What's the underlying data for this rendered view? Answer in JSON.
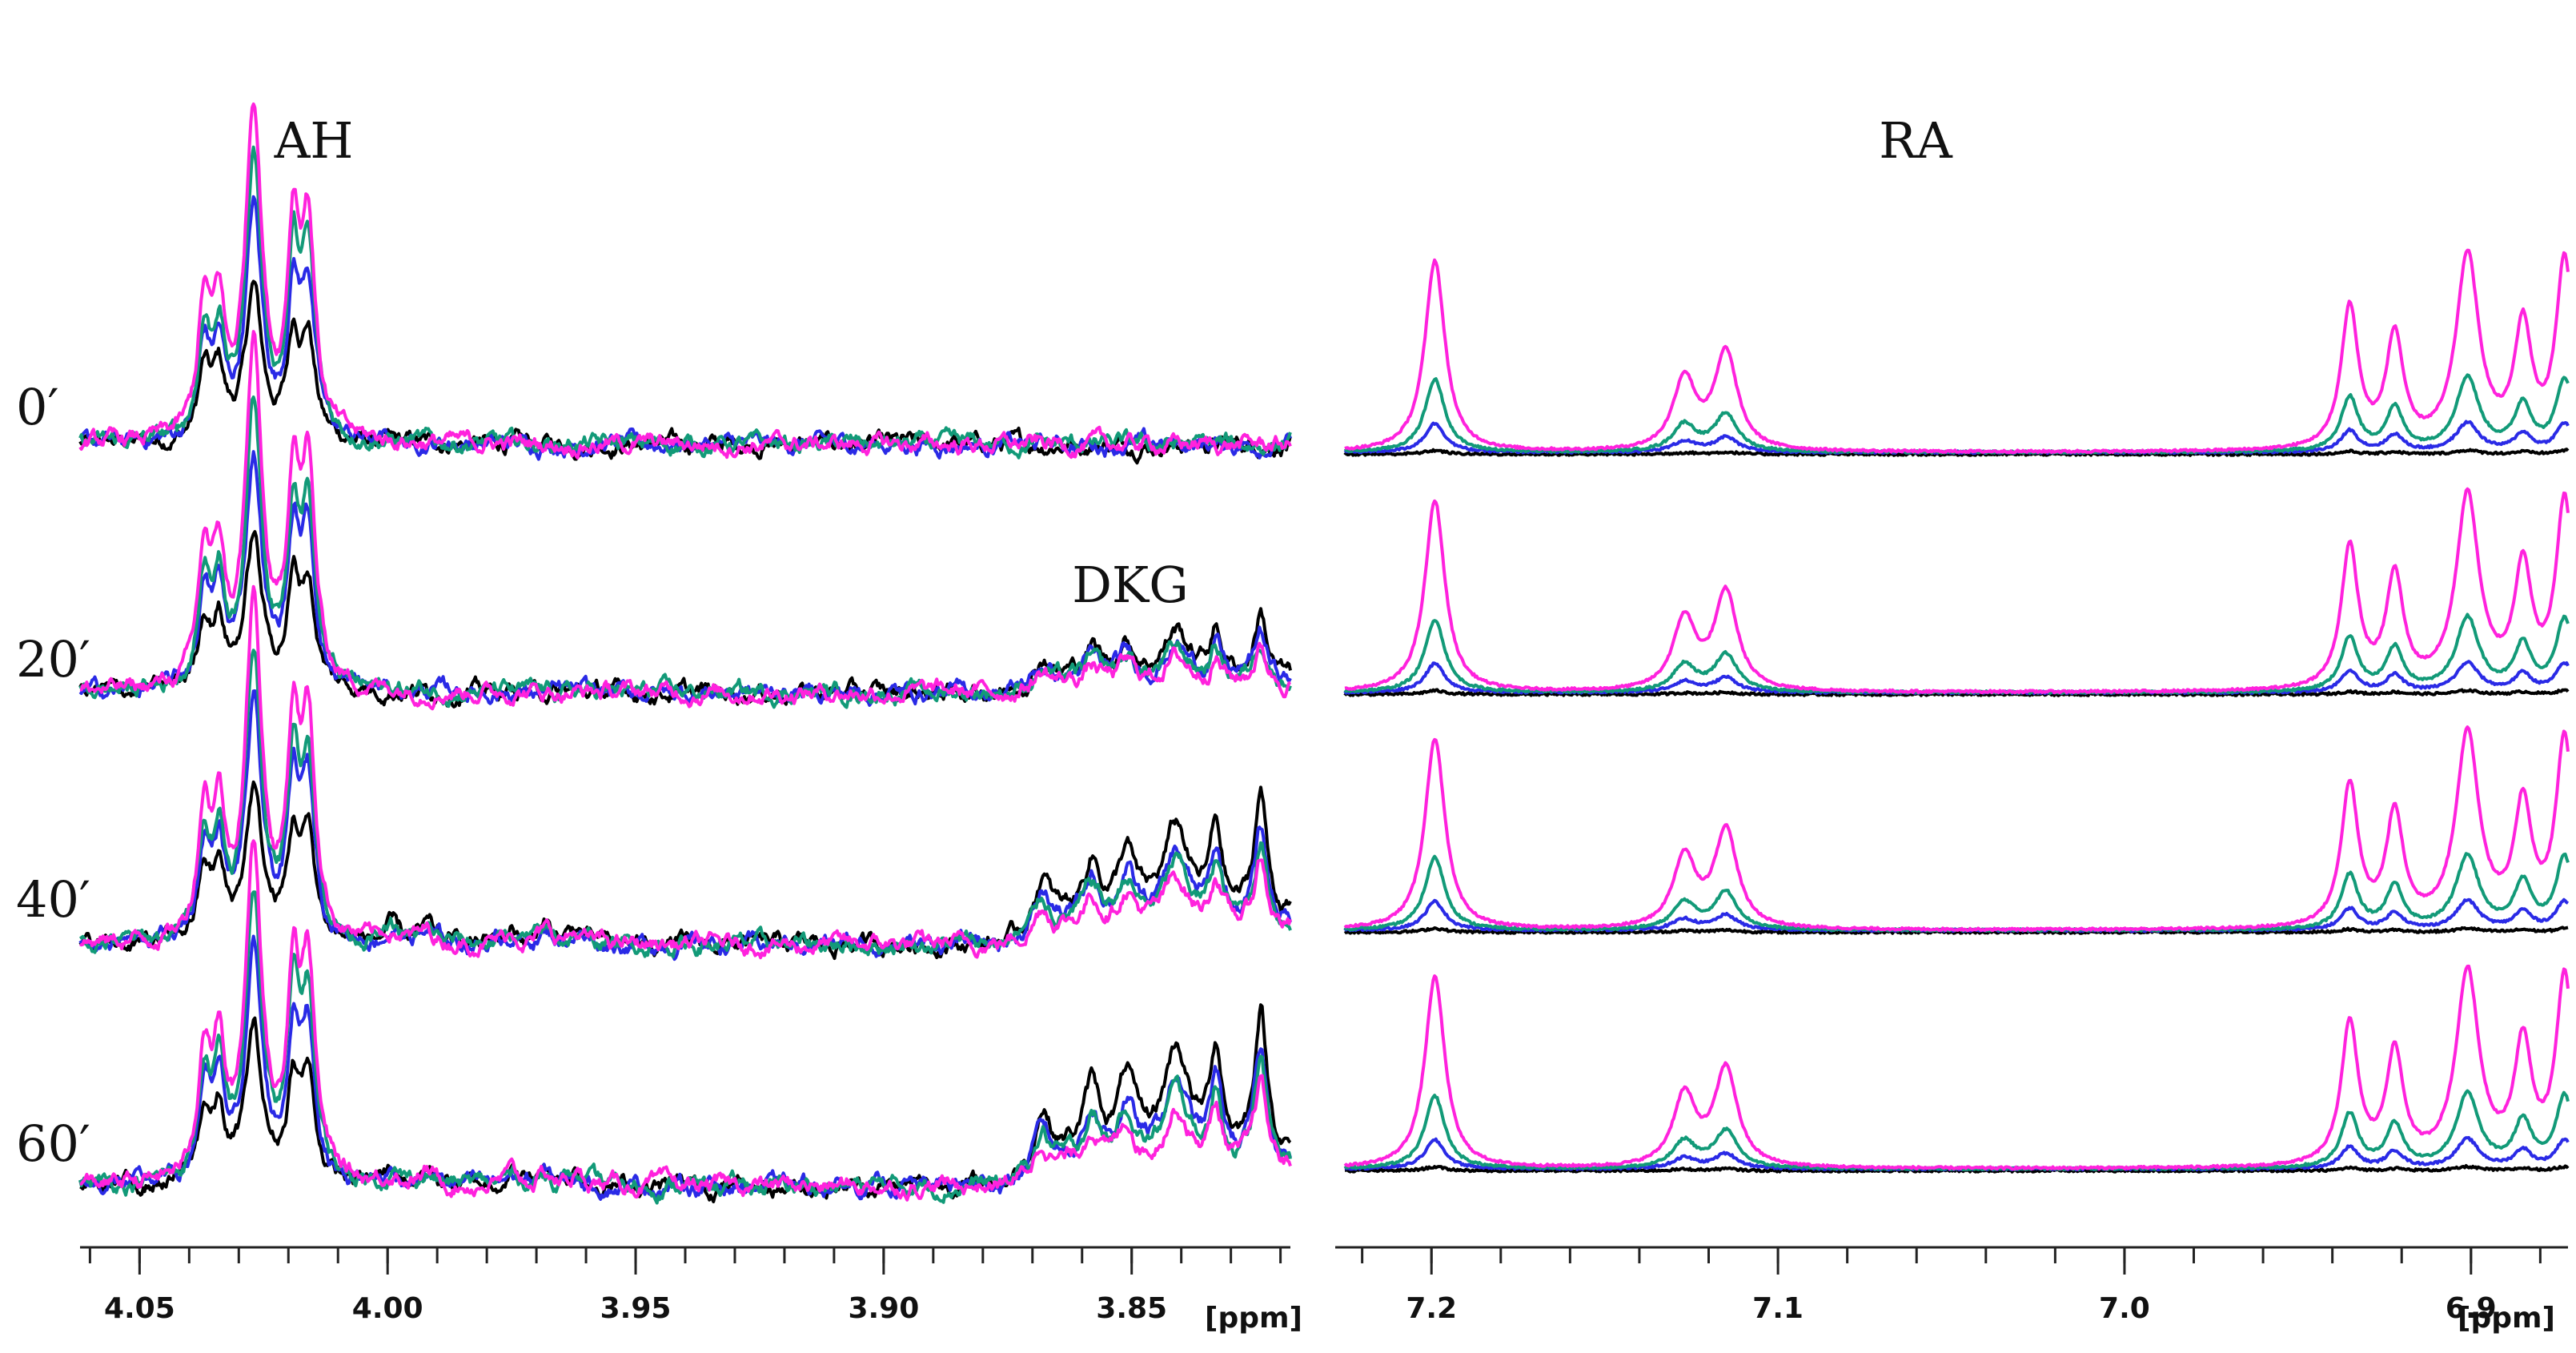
{
  "chart_data": [
    {
      "type": "line",
      "panel": "left",
      "title": "AH",
      "xlabel": "[ppm]",
      "xlim": [
        4.062,
        3.818
      ],
      "x_ticks": [
        "4.05",
        "4.00",
        "3.95",
        "3.90",
        "3.85"
      ],
      "x_tick_values": [
        4.05,
        4.0,
        3.95,
        3.9,
        3.85
      ],
      "annotations": [
        "DKG"
      ],
      "time_points": [
        "0′",
        "20′",
        "40′",
        "60′"
      ],
      "series_colors": [
        "#000000",
        "#2a2ae6",
        "#129a78",
        "#ff22dd"
      ],
      "peaks": [
        {
          "ppm": 4.037,
          "width": 0.0015,
          "height": [
            0.32,
            0.42,
            0.48,
            0.6
          ]
        },
        {
          "ppm": 4.034,
          "width": 0.0015,
          "height": [
            0.3,
            0.4,
            0.46,
            0.56
          ]
        },
        {
          "ppm": 4.027,
          "width": 0.002,
          "height": [
            0.72,
            1.1,
            1.35,
            1.6
          ]
        },
        {
          "ppm": 4.019,
          "width": 0.0015,
          "height": [
            0.45,
            0.65,
            0.78,
            0.92
          ]
        },
        {
          "ppm": 4.016,
          "width": 0.0017,
          "height": [
            0.48,
            0.7,
            0.82,
            0.97
          ]
        }
      ],
      "dkg_growth": [
        0,
        0.45,
        0.85,
        1.0
      ],
      "dkg_peaks": [
        {
          "ppm": 3.868,
          "width": 0.002,
          "height": 0.22
        },
        {
          "ppm": 3.858,
          "width": 0.002,
          "height": 0.25
        },
        {
          "ppm": 3.851,
          "width": 0.002,
          "height": 0.28
        },
        {
          "ppm": 3.841,
          "width": 0.003,
          "height": 0.4
        },
        {
          "ppm": 3.833,
          "width": 0.0015,
          "height": 0.38
        },
        {
          "ppm": 3.824,
          "width": 0.0015,
          "height": 0.55
        }
      ]
    },
    {
      "type": "line",
      "panel": "right",
      "title": "RA",
      "xlabel": "[ppm]",
      "xlim": [
        7.225,
        6.872
      ],
      "x_ticks": [
        "7.2",
        "7.1",
        "7.0",
        "6.9"
      ],
      "x_tick_values": [
        7.2,
        7.1,
        7.0,
        6.9
      ],
      "time_points": [
        "0′",
        "20′",
        "40′",
        "60′"
      ],
      "series_colors": [
        "#000000",
        "#2a2ae6",
        "#129a78",
        "#ff22dd"
      ],
      "series_scale": [
        0.02,
        0.15,
        0.38,
        1.0
      ],
      "peaks": [
        {
          "ppm": 7.199,
          "width": 0.0035,
          "height": 1.0
        },
        {
          "ppm": 7.127,
          "width": 0.004,
          "height": 0.37
        },
        {
          "ppm": 7.115,
          "width": 0.004,
          "height": 0.51
        },
        {
          "ppm": 6.935,
          "width": 0.003,
          "height": 0.74
        },
        {
          "ppm": 6.922,
          "width": 0.003,
          "height": 0.58
        },
        {
          "ppm": 6.901,
          "width": 0.004,
          "height": 1.01
        },
        {
          "ppm": 6.885,
          "width": 0.003,
          "height": 0.62
        },
        {
          "ppm": 6.873,
          "width": 0.003,
          "height": 0.98
        }
      ]
    }
  ]
}
